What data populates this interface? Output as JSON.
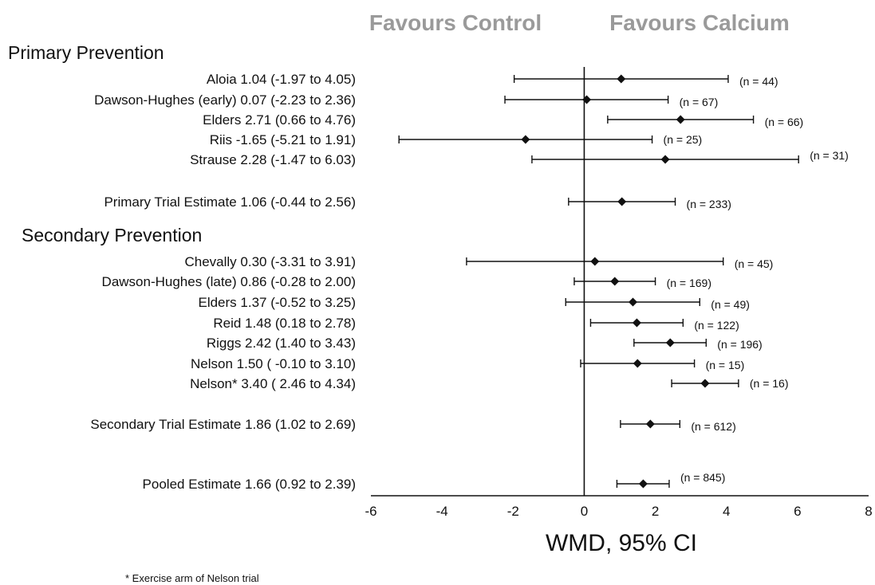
{
  "chart_data": {
    "type": "forest",
    "header_left": "Favours Control",
    "header_right": "Favours Calcium",
    "xlabel": "WMD, 95% CI",
    "xlim": [
      -6,
      8
    ],
    "xticks": [
      "-6",
      "-4",
      "-2",
      "0",
      "2",
      "4",
      "6",
      "8"
    ],
    "footnote": "* Exercise arm of Nelson trial",
    "groups": [
      {
        "title": "Primary Prevention",
        "studies": [
          {
            "label": "Aloia  1.04 (-1.97 to 4.05)",
            "est": 1.04,
            "lo": -1.97,
            "hi": 4.05,
            "n": "(n = 44)"
          },
          {
            "label": "Dawson-Hughes (early) 0.07 (-2.23 to 2.36)",
            "est": 0.07,
            "lo": -2.23,
            "hi": 2.36,
            "n": "(n = 67)"
          },
          {
            "label": "Elders 2.71 (0.66 to 4.76)",
            "est": 2.71,
            "lo": 0.66,
            "hi": 4.76,
            "n": "(n = 66)"
          },
          {
            "label": "Riis -1.65 (-5.21 to 1.91)",
            "est": -1.65,
            "lo": -5.21,
            "hi": 1.91,
            "n": "(n = 25)"
          },
          {
            "label": "Strause 2.28 (-1.47 to 6.03)",
            "est": 2.28,
            "lo": -1.47,
            "hi": 6.03,
            "n": "(n = 31)"
          }
        ],
        "summary": {
          "label": "Primary Trial Estimate 1.06 (-0.44 to 2.56)",
          "est": 1.06,
          "lo": -0.44,
          "hi": 2.56,
          "n": "(n = 233)"
        }
      },
      {
        "title": "Secondary Prevention",
        "studies": [
          {
            "label": "Chevally 0.30 (-3.31 to 3.91)",
            "est": 0.3,
            "lo": -3.31,
            "hi": 3.91,
            "n": "(n = 45)"
          },
          {
            "label": "Dawson-Hughes (late) 0.86 (-0.28 to 2.00)",
            "est": 0.86,
            "lo": -0.28,
            "hi": 2.0,
            "n": "(n = 169)"
          },
          {
            "label": "Elders 1.37 (-0.52 to 3.25)",
            "est": 1.37,
            "lo": -0.52,
            "hi": 3.25,
            "n": "(n = 49)"
          },
          {
            "label": "Reid 1.48 (0.18 to 2.78)",
            "est": 1.48,
            "lo": 0.18,
            "hi": 2.78,
            "n": "(n = 122)"
          },
          {
            "label": "Riggs 2.42 (1.40 to 3.43)",
            "est": 2.42,
            "lo": 1.4,
            "hi": 3.43,
            "n": "(n = 196)"
          },
          {
            "label": "Nelson 1.50 ( -0.10 to 3.10)",
            "est": 1.5,
            "lo": -0.1,
            "hi": 3.1,
            "n": "(n = 15)"
          },
          {
            "label": "Nelson* 3.40 ( 2.46 to 4.34)",
            "est": 3.4,
            "lo": 2.46,
            "hi": 4.34,
            "n": "(n = 16)"
          }
        ],
        "summary": {
          "label": "Secondary Trial Estimate 1.86 (1.02 to 2.69)",
          "est": 1.86,
          "lo": 1.02,
          "hi": 2.69,
          "n": "(n = 612)"
        }
      }
    ],
    "pooled": {
      "label": "Pooled Estimate 1.66 (0.92 to 2.39)",
      "est": 1.66,
      "lo": 0.92,
      "hi": 2.39,
      "n": "(n = 845)"
    }
  }
}
